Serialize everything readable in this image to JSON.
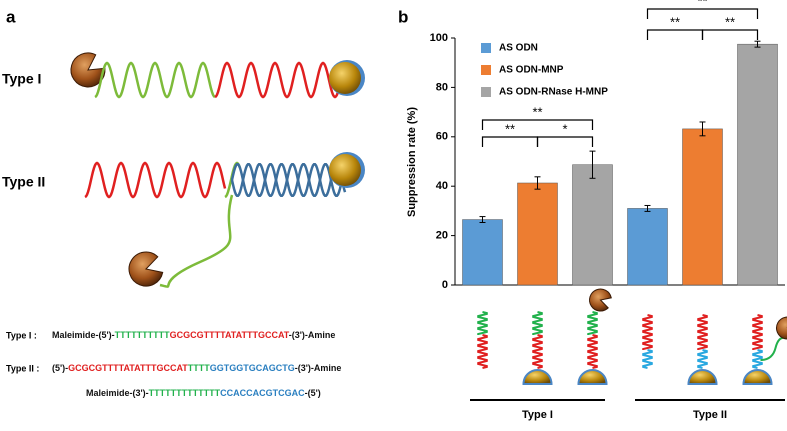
{
  "panel_a": {
    "label": "a",
    "type1_label": "Type I",
    "type2_label": "Type II",
    "sequences": [
      {
        "name": "Type I :",
        "parts": [
          {
            "text": "Maleimide-(5')-",
            "color": "#111111"
          },
          {
            "text": "TTTTTTTTTT",
            "color": "#22b14c"
          },
          {
            "text": "GCGCGTTTTATATTTGCCAT",
            "color": "#e02020"
          },
          {
            "text": "-(3')-Amine",
            "color": "#111111"
          }
        ]
      },
      {
        "name": "Type II :",
        "parts": [
          {
            "text": "(5')-",
            "color": "#111111"
          },
          {
            "text": "GCGCGTTTTATATTTGCCAT",
            "color": "#e02020"
          },
          {
            "text": "TTTT",
            "color": "#22b14c"
          },
          {
            "text": "GGTGGTGCAGCTG",
            "color": "#2a7fc0"
          },
          {
            "text": "-(3')-Amine",
            "color": "#111111"
          }
        ]
      },
      {
        "name": null,
        "parts": [
          {
            "text": "Maleimide-(3')-",
            "color": "#111111"
          },
          {
            "text": "TTTTTTTTTTTTT",
            "color": "#22b14c"
          },
          {
            "text": "CCACCACGTCGAC",
            "color": "#2a7fc0"
          },
          {
            "text": "-(5')",
            "color": "#111111"
          }
        ]
      }
    ]
  },
  "chart_data": {
    "type": "bar",
    "label": "b",
    "ylabel": "Suppression rate (%)",
    "categories": [
      "Type I",
      "Type II"
    ],
    "series": [
      {
        "name": "AS ODN",
        "color": "#5b9bd5",
        "values": [
          26.5,
          31
        ],
        "errors": [
          1.2,
          1.2
        ]
      },
      {
        "name": "AS ODN-MNP",
        "color": "#ed7d31",
        "values": [
          41.3,
          63.2
        ],
        "errors": [
          2.5,
          2.8
        ]
      },
      {
        "name": "AS ODN-RNase H-MNP",
        "color": "#a5a5a5",
        "values": [
          48.7,
          97.5
        ],
        "errors": [
          5.5,
          1.2
        ]
      }
    ],
    "ylim": [
      0,
      100
    ],
    "yticks": [
      0,
      20,
      40,
      60,
      80,
      100
    ],
    "grid": false,
    "annotations": [
      "**",
      "*",
      "**",
      "**",
      "**",
      "**"
    ]
  }
}
